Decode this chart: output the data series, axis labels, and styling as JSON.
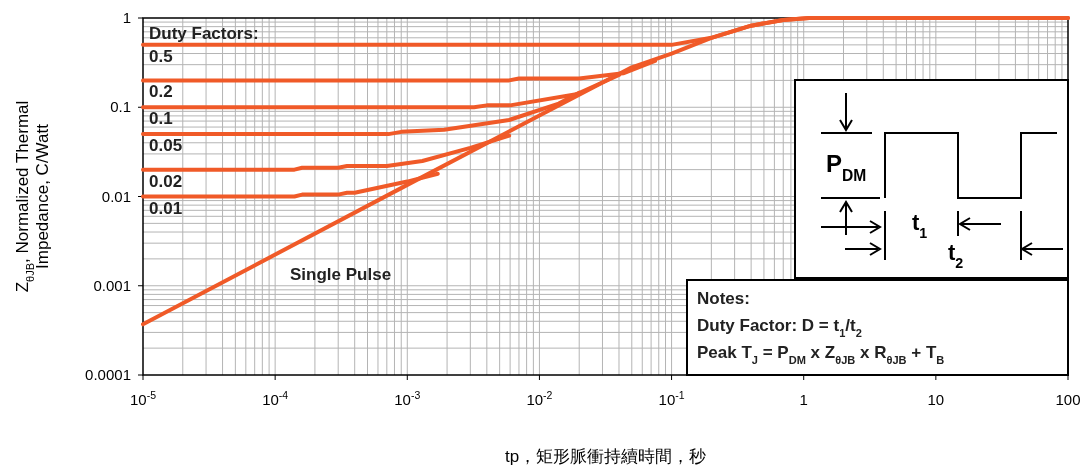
{
  "chart_data": {
    "type": "line",
    "log": "xy",
    "grid": true,
    "marker": "none",
    "line_style": "solid",
    "xlabel": "tp，矩形脈衝持續時間，秒",
    "ylabel": "Z$_{θJB}$, Normalized Thermal Impedance, C/Watt",
    "xlim": [
      1e-05,
      100
    ],
    "ylim": [
      0.0001,
      1
    ],
    "xticks": [
      {
        "value": 1e-05,
        "label": "10$^{-5}$"
      },
      {
        "value": 0.0001,
        "label": "10$^{-4}$"
      },
      {
        "value": 0.001,
        "label": "10$^{-3}$"
      },
      {
        "value": 0.01,
        "label": "10$^{-2}$"
      },
      {
        "value": 0.1,
        "label": "10$^{-1}$"
      },
      1,
      10,
      100
    ],
    "yticks": [
      0.0001,
      0.001,
      0.01,
      0.1,
      1
    ],
    "annotations": [
      "Duty Factors:",
      "Notes:",
      "Duty Factor: D = t$_{1}$/t$_{2}$",
      "Peak T$_{J}$ = P$_{DM}$ x Z$_{θJB}$ x R$_{θJB}$ + T$_{B}$",
      "P$_{DM}$",
      "t$_{1}$",
      "t$_{2}$"
    ],
    "series": [
      {
        "name": "0.5",
        "color": "#f05a28",
        "x": [
          1e-05,
          0.1,
          0.2,
          0.4,
          0.7,
          1.1,
          100
        ],
        "values": [
          0.5,
          0.5,
          0.6,
          0.82,
          0.95,
          1,
          1
        ]
      },
      {
        "name": "0.2",
        "color": "#f05a28",
        "x": [
          1e-05,
          0.0059,
          0.007,
          0.02,
          0.043,
          0.075
        ],
        "values": [
          0.2,
          0.2,
          0.21,
          0.21,
          0.24,
          0.33
        ]
      },
      {
        "name": "0.1",
        "color": "#f05a28",
        "x": [
          1e-05,
          0.0032,
          0.004,
          0.006,
          0.019,
          0.04
        ],
        "values": [
          0.1,
          0.1,
          0.105,
          0.105,
          0.14,
          0.23
        ]
      },
      {
        "name": "0.05",
        "color": "#f05a28",
        "x": [
          1e-05,
          0.00072,
          0.0009,
          0.0019,
          0.0059,
          0.014,
          0.02
        ],
        "values": [
          0.05,
          0.05,
          0.053,
          0.056,
          0.072,
          0.11,
          0.145
        ]
      },
      {
        "name": "0.02",
        "color": "#f05a28",
        "x": [
          1e-05,
          0.00014,
          0.00016,
          0.0003,
          0.00035,
          0.0007,
          0.0013,
          0.003,
          0.0059
        ],
        "values": [
          0.02,
          0.02,
          0.021,
          0.021,
          0.022,
          0.022,
          0.025,
          0.035,
          0.048
        ]
      },
      {
        "name": "0.01",
        "color": "#f05a28",
        "x": [
          1e-05,
          0.00014,
          0.00016,
          0.0003,
          0.00035,
          0.0004,
          0.001,
          0.0017
        ],
        "values": [
          0.01,
          0.01,
          0.0105,
          0.0105,
          0.011,
          0.011,
          0.0147,
          0.018
        ]
      },
      {
        "name": "Single Pulse",
        "color": "#f05a28",
        "x": [
          1e-05,
          0.001,
          0.01,
          0.05,
          0.1,
          0.2,
          0.4,
          0.7,
          1.1,
          100
        ],
        "values": [
          0.00037,
          0.0135,
          0.081,
          0.28,
          0.4,
          0.6,
          0.82,
          0.95,
          1,
          1
        ]
      }
    ]
  }
}
